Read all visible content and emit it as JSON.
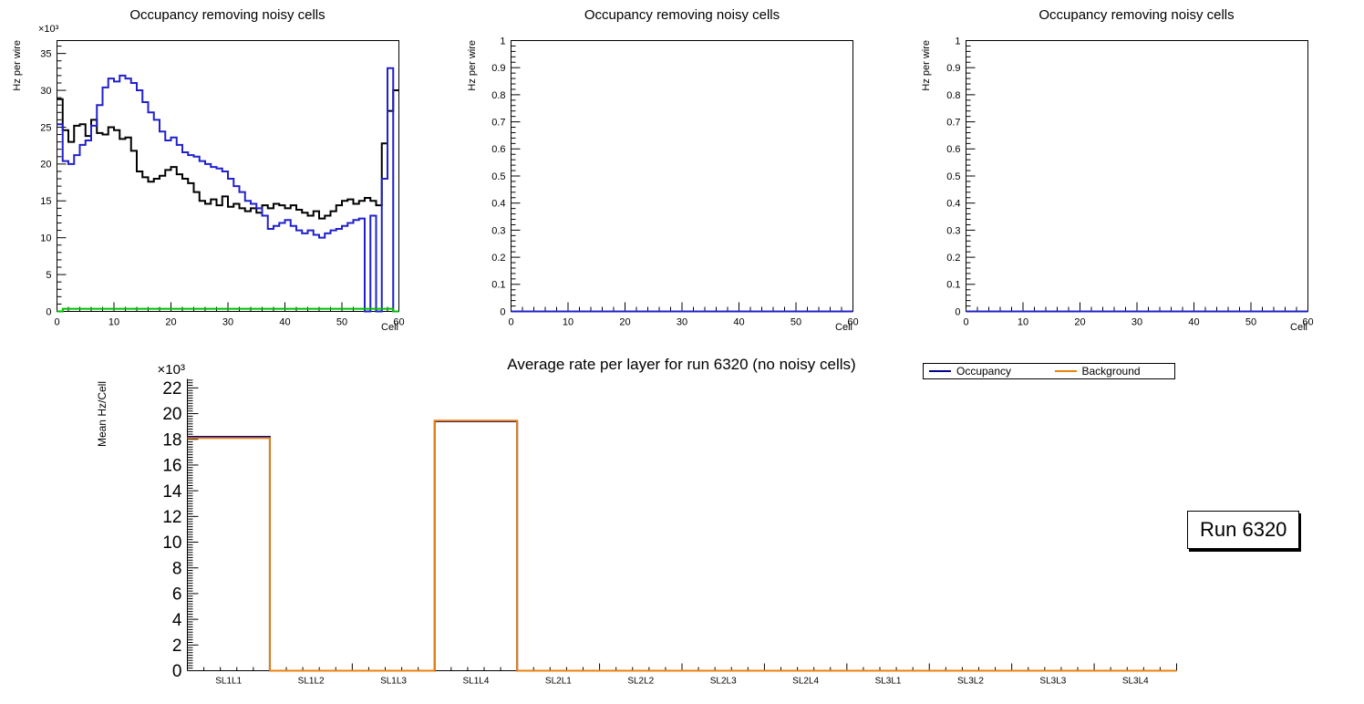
{
  "chart_data": [
    {
      "type": "line",
      "title": "Occupancy removing noisy cells",
      "xlabel": "Cell",
      "ylabel": "Hz per wire",
      "y_multiplier": "×10³",
      "frame": true,
      "xlim": [
        0,
        60
      ],
      "ylim": [
        0,
        36.75
      ],
      "xticks": [
        0,
        10,
        20,
        30,
        40,
        50,
        60
      ],
      "yticks": [
        0,
        5,
        10,
        15,
        20,
        25,
        30,
        35
      ],
      "x_minor_div": 5,
      "y_minor_div": 5,
      "series": [
        {
          "name": "occupancy-black",
          "color": "#000000",
          "width": 2,
          "values": [
            28.8,
            24.6,
            23.0,
            25.2,
            25.4,
            23.8,
            26.0,
            24.2,
            24.0,
            25.0,
            24.6,
            23.4,
            23.6,
            21.8,
            19.0,
            18.2,
            17.6,
            18.0,
            18.4,
            19.2,
            19.6,
            18.6,
            18.0,
            17.4,
            16.2,
            15.0,
            14.6,
            15.2,
            14.4,
            15.6,
            14.2,
            14.6,
            14.0,
            13.6,
            14.0,
            13.4,
            14.4,
            14.0,
            14.6,
            14.4,
            14.0,
            14.4,
            13.8,
            13.4,
            13.0,
            13.6,
            12.6,
            13.0,
            13.6,
            14.4,
            15.0,
            15.2,
            14.6,
            15.0,
            15.4,
            15.0,
            14.4,
            22.8,
            27.2,
            30.0
          ]
        },
        {
          "name": "occupancy-blue",
          "color": "#2121cc",
          "width": 2,
          "values": [
            25.4,
            20.4,
            20.0,
            21.2,
            22.6,
            23.2,
            25.2,
            28.0,
            30.4,
            31.6,
            31.2,
            32.0,
            31.6,
            31.0,
            30.0,
            28.4,
            27.0,
            26.0,
            24.4,
            23.2,
            23.6,
            22.6,
            21.6,
            21.2,
            21.0,
            20.4,
            20.0,
            19.6,
            19.4,
            19.0,
            18.0,
            17.0,
            16.2,
            15.0,
            14.6,
            14.0,
            13.0,
            11.2,
            11.6,
            12.0,
            12.4,
            11.6,
            11.0,
            10.6,
            11.0,
            10.4,
            10.0,
            10.6,
            11.0,
            11.2,
            11.6,
            12.0,
            12.4,
            12.6,
            0,
            13.0,
            0,
            18.0,
            33.0,
            0
          ]
        },
        {
          "name": "noisy-cells-green",
          "color": "#00bf00",
          "width": 2,
          "values": [
            0,
            0.35,
            0.35,
            0.35,
            0.35,
            0.35,
            0.35,
            0.35,
            0.35,
            0.35,
            0.35,
            0.35,
            0.35,
            0.35,
            0.35,
            0.35,
            0.35,
            0.35,
            0.35,
            0.35,
            0.35,
            0.35,
            0.35,
            0.35,
            0.35,
            0.35,
            0.35,
            0.35,
            0.35,
            0.35,
            0.35,
            0.35,
            0.35,
            0.35,
            0.35,
            0.35,
            0.35,
            0.35,
            0.35,
            0.35,
            0.35,
            0.35,
            0.35,
            0.35,
            0.35,
            0.35,
            0.35,
            0.35,
            0.35,
            0.35,
            0.35,
            0.35,
            0.35,
            0.35,
            0.35,
            0.35,
            0.35,
            0.35,
            0.35,
            0
          ]
        }
      ]
    },
    {
      "type": "line",
      "title": "Occupancy removing noisy cells",
      "xlabel": "Cell",
      "ylabel": "Hz per wire",
      "frame": true,
      "xlim": [
        0,
        60
      ],
      "ylim": [
        0,
        1
      ],
      "xticks": [
        0,
        10,
        20,
        30,
        40,
        50,
        60
      ],
      "yticks": [
        0,
        0.1,
        0.2,
        0.3,
        0.4,
        0.5,
        0.6,
        0.7,
        0.8,
        0.9,
        1
      ],
      "x_minor_div": 5,
      "y_minor_div": 5,
      "series": [
        {
          "name": "empty-blue",
          "color": "#2121cc",
          "width": 2,
          "values": [
            0
          ]
        }
      ]
    },
    {
      "type": "line",
      "title": "Occupancy removing noisy cells",
      "xlabel": "Cell",
      "ylabel": "Hz per wire",
      "frame": true,
      "xlim": [
        0,
        60
      ],
      "ylim": [
        0,
        1
      ],
      "xticks": [
        0,
        10,
        20,
        30,
        40,
        50,
        60
      ],
      "yticks": [
        0,
        0.1,
        0.2,
        0.3,
        0.4,
        0.5,
        0.6,
        0.7,
        0.8,
        0.9,
        1
      ],
      "x_minor_div": 5,
      "y_minor_div": 5,
      "series": [
        {
          "name": "empty-blue",
          "color": "#2121cc",
          "width": 2,
          "values": [
            0
          ]
        }
      ]
    },
    {
      "type": "bar",
      "title": "Average rate per layer for run 6320 (no noisy cells)",
      "xlabel": "",
      "ylabel": "Mean Hz/Cell",
      "y_multiplier": "×10³",
      "frame": false,
      "ylim": [
        0,
        22.7
      ],
      "yticks": [
        0,
        2,
        4,
        6,
        8,
        10,
        12,
        14,
        16,
        18,
        20,
        22
      ],
      "y_minor_div": 10,
      "x_minor_div": 5,
      "categories": [
        "SL1L1",
        "SL1L2",
        "SL1L3",
        "SL1L4",
        "SL2L1",
        "SL2L2",
        "SL2L3",
        "SL2L4",
        "SL3L1",
        "SL3L2",
        "SL3L3",
        "SL3L4"
      ],
      "series": [
        {
          "name": "Occupancy",
          "color": "#00008c",
          "width": 2,
          "values": [
            18.2,
            0,
            0,
            19.4,
            0,
            0,
            0,
            0,
            0,
            0,
            0,
            0
          ]
        },
        {
          "name": "Background",
          "color": "#e8820e",
          "width": 2,
          "values": [
            18.1,
            0,
            0,
            19.45,
            0,
            0,
            0,
            0,
            0,
            0,
            0,
            0
          ]
        }
      ],
      "legend_position": "top-right",
      "stats_box": "Run 6320"
    }
  ]
}
